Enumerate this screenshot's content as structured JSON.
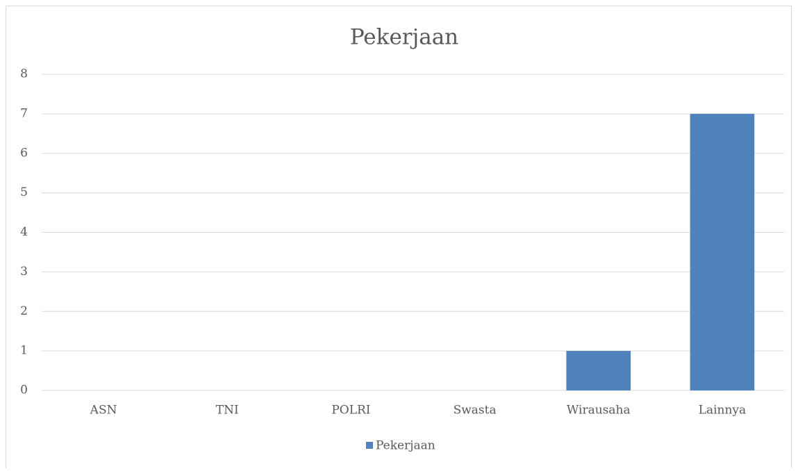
{
  "chart_data": {
    "type": "bar",
    "title": "Pekerjaan",
    "categories": [
      "ASN",
      "TNI",
      "POLRI",
      "Swasta",
      "Wirausaha",
      "Lainnya"
    ],
    "series": [
      {
        "name": "Pekerjaan",
        "color": "#4f81bd",
        "values": [
          0,
          0,
          0,
          0,
          1,
          7
        ]
      }
    ],
    "ylim": [
      0,
      8
    ],
    "yticks": [
      0,
      1,
      2,
      3,
      4,
      5,
      6,
      7,
      8
    ],
    "grid": true,
    "legend": "bottom"
  }
}
